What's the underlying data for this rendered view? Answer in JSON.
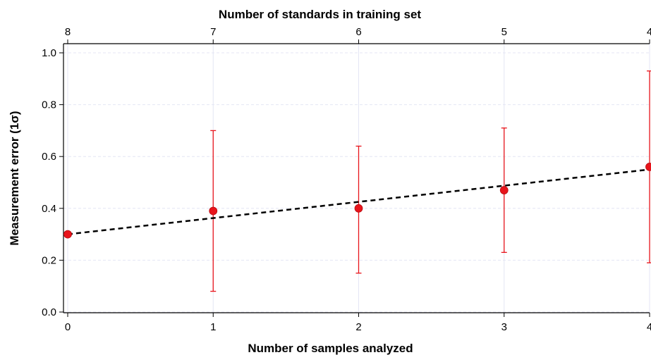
{
  "chart_data": {
    "type": "scatter",
    "title": "",
    "xlabel": "Number of samples analyzed",
    "x2label": "Number of standards in training set",
    "ylabel": "Measurement error (1σ)",
    "xlim": [
      0,
      4
    ],
    "ylim": [
      0,
      1.0
    ],
    "x_ticks": [
      0,
      1,
      2,
      3,
      4
    ],
    "x_tick_labels": [
      "0",
      "1",
      "2",
      "3",
      "4"
    ],
    "x2_tick_labels": [
      "8",
      "7",
      "6",
      "5",
      "4"
    ],
    "y_ticks": [
      0,
      0.2,
      0.4,
      0.6,
      0.8,
      1.0
    ],
    "y_tick_labels": [
      "0.0",
      "0.2",
      "0.4",
      "0.6",
      "0.8",
      "1.0"
    ],
    "grid": true,
    "legend": "none",
    "series": [
      {
        "x": [
          0,
          1,
          2,
          3,
          4
        ],
        "values": [
          0.3,
          0.39,
          0.4,
          0.47,
          0.56
        ],
        "error_low": [
          null,
          0.08,
          0.15,
          0.23,
          0.19
        ],
        "error_high": [
          null,
          0.7,
          0.64,
          0.71,
          0.93
        ],
        "color": "#e8141b"
      }
    ],
    "trendline": {
      "x": [
        0,
        4
      ],
      "y": [
        0.3,
        0.55
      ],
      "style": "dashed",
      "color": "#000000"
    },
    "colors": {
      "point": "#e8141b",
      "errorbar": "#e8141b",
      "grid": "#e4e6f4",
      "axis": "#000000"
    }
  }
}
